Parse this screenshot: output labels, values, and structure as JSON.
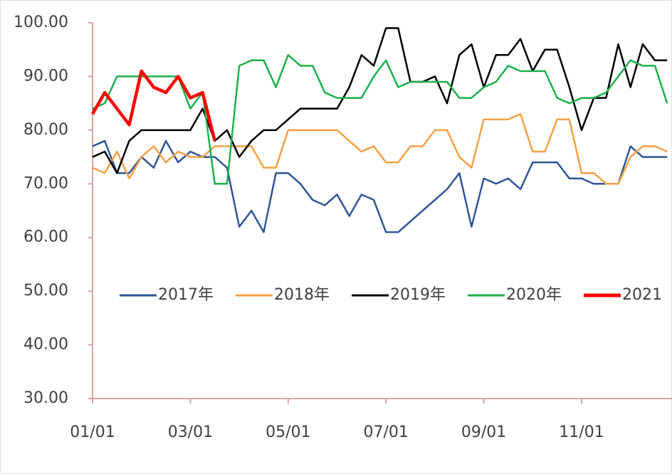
{
  "chart_data": {
    "type": "line",
    "categories": [
      "01/01",
      null,
      null,
      null,
      null,
      null,
      null,
      null,
      "03/01",
      null,
      null,
      null,
      null,
      null,
      null,
      null,
      "05/01",
      null,
      null,
      null,
      null,
      null,
      null,
      null,
      "07/01",
      null,
      null,
      null,
      null,
      null,
      null,
      null,
      "09/01",
      null,
      null,
      null,
      null,
      null,
      null,
      null,
      "11/01",
      null,
      null,
      null,
      null,
      null,
      null,
      null
    ],
    "ylim": [
      30,
      100
    ],
    "yticks": [
      {
        "value": 30,
        "label": "30.00"
      },
      {
        "value": 40,
        "label": "40.00"
      },
      {
        "value": 50,
        "label": "50.00"
      },
      {
        "value": 60,
        "label": "60.00"
      },
      {
        "value": 70,
        "label": "70.00"
      },
      {
        "value": 80,
        "label": "80.00"
      },
      {
        "value": 90,
        "label": "90.00"
      },
      {
        "value": 100,
        "label": "100.00"
      }
    ],
    "series": [
      {
        "name": "2017年",
        "color": "#2f5597",
        "values": [
          77,
          78,
          72,
          72,
          75,
          73,
          78,
          74,
          76,
          75,
          75,
          73,
          62,
          65,
          61,
          72,
          72,
          70,
          67,
          66,
          68,
          64,
          68,
          67,
          61,
          61,
          63,
          65,
          67,
          69,
          72,
          62,
          71,
          70,
          71,
          69,
          74,
          74,
          74,
          71,
          71,
          70,
          70,
          70,
          77,
          75,
          75,
          75
        ]
      },
      {
        "name": "2018年",
        "color": "#f4a045",
        "values": [
          73,
          72,
          76,
          71,
          75,
          77,
          74,
          76,
          75,
          75,
          77,
          77,
          77,
          77,
          73,
          73,
          80,
          80,
          80,
          80,
          80,
          78,
          76,
          77,
          74,
          74,
          77,
          77,
          80,
          80,
          75,
          73,
          82,
          82,
          82,
          83,
          76,
          76,
          82,
          82,
          72,
          72,
          70,
          70,
          75,
          77,
          77,
          76
        ]
      },
      {
        "name": "2019年",
        "color": "#000000",
        "values": [
          75,
          76,
          72,
          78,
          80,
          80,
          80,
          80,
          80,
          84,
          78,
          80,
          75,
          78,
          80,
          80,
          82,
          84,
          84,
          84,
          84,
          88,
          94,
          92,
          99,
          99,
          89,
          89,
          90,
          85,
          94,
          96,
          88,
          94,
          94,
          97,
          91,
          95,
          95,
          88,
          80,
          86,
          86,
          96,
          88,
          96,
          93,
          93
        ]
      },
      {
        "name": "2020年",
        "color": "#1cb14a",
        "values": [
          84,
          85,
          90,
          90,
          90,
          90,
          90,
          90,
          84,
          87,
          70,
          70,
          92,
          93,
          93,
          88,
          94,
          92,
          92,
          87,
          86,
          86,
          86,
          90,
          93,
          88,
          89,
          89,
          89,
          89,
          86,
          86,
          88,
          89,
          92,
          91,
          91,
          91,
          86,
          85,
          86,
          86,
          87,
          90,
          93,
          92,
          92,
          85
        ]
      },
      {
        "name": "2021",
        "color": "#ff0000",
        "values": [
          83,
          87,
          84,
          81,
          91,
          88,
          87,
          90,
          86,
          87,
          78,
          null,
          null,
          null,
          null,
          null,
          null,
          null,
          null,
          null,
          null,
          null,
          null,
          null,
          null,
          null,
          null,
          null,
          null,
          null,
          null,
          null,
          null,
          null,
          null,
          null,
          null,
          null,
          null,
          null,
          null,
          null,
          null,
          null,
          null,
          null,
          null,
          null
        ]
      }
    ]
  }
}
